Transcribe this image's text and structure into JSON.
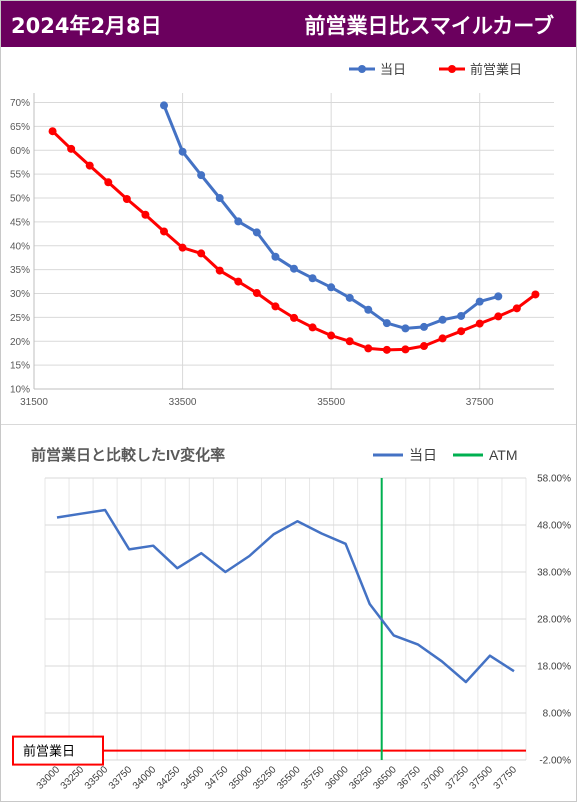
{
  "header": {
    "date": "2024年2月8日",
    "title": "前営業日比スマイルカーブ"
  },
  "accent_color": "#6b005e",
  "chart_data": [
    {
      "type": "line",
      "title": "",
      "legend": [
        "当日",
        "前営業日"
      ],
      "legend_position": "top-right",
      "grid": true,
      "xlim": [
        31500,
        38500
      ],
      "ylim": [
        0.1,
        0.72
      ],
      "x_ticks": [
        31500,
        33500,
        35500,
        37500
      ],
      "y_ticks": [
        0.1,
        0.15,
        0.2,
        0.25,
        0.3,
        0.35,
        0.4,
        0.45,
        0.5,
        0.55,
        0.6,
        0.65,
        0.7
      ],
      "y_tick_labels": [
        "10%",
        "15%",
        "20%",
        "25%",
        "30%",
        "35%",
        "40%",
        "45%",
        "50%",
        "55%",
        "60%",
        "65%",
        "70%"
      ],
      "series": [
        {
          "name": "当日",
          "color": "#4472c4",
          "points": [
            [
              33250,
              0.694
            ],
            [
              33500,
              0.597
            ],
            [
              33750,
              0.548
            ],
            [
              34000,
              0.5
            ],
            [
              34250,
              0.451
            ],
            [
              34500,
              0.428
            ],
            [
              34750,
              0.377
            ],
            [
              35000,
              0.352
            ],
            [
              35250,
              0.332
            ],
            [
              35500,
              0.313
            ],
            [
              35750,
              0.291
            ],
            [
              36000,
              0.266
            ],
            [
              36250,
              0.238
            ],
            [
              36500,
              0.227
            ],
            [
              36750,
              0.23
            ],
            [
              37000,
              0.245
            ],
            [
              37250,
              0.253
            ],
            [
              37500,
              0.283
            ],
            [
              37750,
              0.294
            ]
          ]
        },
        {
          "name": "前営業日",
          "color": "#ff0000",
          "points": [
            [
              31750,
              0.64
            ],
            [
              32000,
              0.603
            ],
            [
              32250,
              0.568
            ],
            [
              32500,
              0.533
            ],
            [
              32750,
              0.498
            ],
            [
              33000,
              0.465
            ],
            [
              33250,
              0.43
            ],
            [
              33500,
              0.396
            ],
            [
              33750,
              0.384
            ],
            [
              34000,
              0.348
            ],
            [
              34250,
              0.325
            ],
            [
              34500,
              0.301
            ],
            [
              34750,
              0.273
            ],
            [
              35000,
              0.249
            ],
            [
              35250,
              0.229
            ],
            [
              35500,
              0.212
            ],
            [
              35750,
              0.2
            ],
            [
              36000,
              0.185
            ],
            [
              36250,
              0.182
            ],
            [
              36500,
              0.183
            ],
            [
              36750,
              0.19
            ],
            [
              37000,
              0.206
            ],
            [
              37250,
              0.221
            ],
            [
              37500,
              0.237
            ],
            [
              37750,
              0.252
            ],
            [
              38000,
              0.269
            ],
            [
              38250,
              0.298
            ]
          ]
        }
      ]
    },
    {
      "type": "line",
      "title": "前営業日と比較したIV変化率",
      "legend": [
        "当日",
        "ATM"
      ],
      "legend_position": "top-right",
      "grid": true,
      "categories": [
        "33000",
        "33250",
        "33500",
        "33750",
        "34000",
        "34250",
        "34500",
        "34750",
        "35000",
        "35250",
        "35500",
        "35750",
        "36000",
        "36250",
        "36500",
        "36750",
        "37000",
        "37250",
        "37500",
        "37750"
      ],
      "ylim": [
        -0.02,
        0.58
      ],
      "y_ticks": [
        -0.02,
        0.08,
        0.18,
        0.28,
        0.38,
        0.48,
        0.58
      ],
      "y_tick_labels": [
        "-2.00%",
        "8.00%",
        "18.00%",
        "28.00%",
        "38.00%",
        "48.00%",
        "58.00%"
      ],
      "series": [
        {
          "name": "当日",
          "color": "#4472c4",
          "values": [
            0.496,
            0.504,
            0.512,
            0.428,
            0.436,
            0.388,
            0.42,
            0.38,
            0.414,
            0.46,
            0.488,
            0.462,
            0.44,
            0.312,
            0.245,
            0.226,
            0.19,
            0.146,
            0.202,
            0.169
          ]
        },
        {
          "name": "前営業日",
          "color": "#ff0000",
          "values": [
            0.0,
            0.0,
            0.0,
            0.0,
            0.0,
            0.0,
            0.0,
            0.0,
            0.0,
            0.0,
            0.0,
            0.0,
            0.0,
            0.0,
            0.0,
            0.0,
            0.0,
            0.0,
            0.0,
            0.0
          ]
        }
      ],
      "atm": {
        "name": "ATM",
        "x": 36375,
        "color": "#00b050"
      },
      "baseline_label": "前営業日"
    }
  ]
}
